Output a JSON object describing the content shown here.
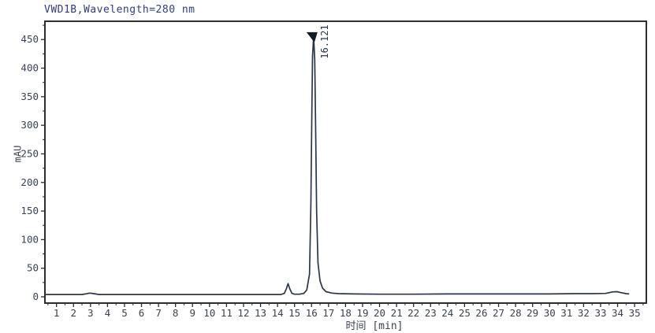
{
  "chart_data": {
    "type": "line",
    "title": "VWD1B,Wavelength=280 nm",
    "xlabel": "时间 [min]",
    "ylabel": "mAU",
    "xlim": [
      0.32,
      35.69
    ],
    "ylim": [
      -11,
      482
    ],
    "grid": false,
    "legend": "none",
    "x_major_ticks": [
      1,
      2,
      3,
      4,
      5,
      6,
      7,
      8,
      9,
      10,
      11,
      12,
      13,
      14,
      15,
      16,
      17,
      18,
      19,
      20,
      21,
      22,
      23,
      24,
      25,
      26,
      27,
      28,
      29,
      30,
      31,
      32,
      33,
      34,
      35
    ],
    "x_minor_tick_step": 0.5,
    "y_major_ticks": [
      0,
      50,
      100,
      150,
      200,
      250,
      300,
      350,
      400,
      450
    ],
    "y_minor_tick_step": 25,
    "colors": {
      "trace": "#2b3746",
      "frame": "#2d2d2d",
      "tick_labels": "#3b4252",
      "title_text": "#333c7c",
      "peak_marker": "#141b26",
      "background": "#ffffff"
    },
    "peaks": [
      {
        "retention_time_min": 16.121,
        "label": "16.121",
        "apex_mAU": 456,
        "marker": "filled-down-triangle"
      },
      {
        "retention_time_min": 14.62,
        "label": "",
        "apex_mAU": 23
      },
      {
        "retention_time_min": 33.95,
        "label": "",
        "apex_mAU": 9
      },
      {
        "retention_time_min": 2.95,
        "label": "",
        "apex_mAU": 6.5
      }
    ],
    "baseline_mAU": 4,
    "series": [
      {
        "name": "VWD1B signal",
        "points": [
          [
            0.32,
            4
          ],
          [
            1.5,
            4
          ],
          [
            2.5,
            4
          ],
          [
            2.7,
            5
          ],
          [
            2.95,
            6.5
          ],
          [
            3.2,
            5.5
          ],
          [
            3.5,
            4
          ],
          [
            5,
            4
          ],
          [
            8,
            4
          ],
          [
            11,
            4
          ],
          [
            13.5,
            4
          ],
          [
            14.2,
            4
          ],
          [
            14.4,
            6
          ],
          [
            14.52,
            14
          ],
          [
            14.62,
            23
          ],
          [
            14.72,
            14
          ],
          [
            14.85,
            6
          ],
          [
            15.0,
            4.5
          ],
          [
            15.3,
            4.5
          ],
          [
            15.55,
            6
          ],
          [
            15.72,
            12
          ],
          [
            15.88,
            40
          ],
          [
            15.96,
            160
          ],
          [
            16.02,
            330
          ],
          [
            16.06,
            420
          ],
          [
            16.121,
            456
          ],
          [
            16.19,
            415
          ],
          [
            16.24,
            300
          ],
          [
            16.3,
            150
          ],
          [
            16.38,
            60
          ],
          [
            16.5,
            28
          ],
          [
            16.65,
            15
          ],
          [
            16.85,
            9
          ],
          [
            17.2,
            6.5
          ],
          [
            17.6,
            5.5
          ],
          [
            18.5,
            5
          ],
          [
            20,
            4.5
          ],
          [
            22,
            4.5
          ],
          [
            24,
            5
          ],
          [
            26,
            5
          ],
          [
            28,
            5
          ],
          [
            30,
            5
          ],
          [
            31.5,
            5.5
          ],
          [
            32.5,
            5.5
          ],
          [
            33.3,
            6
          ],
          [
            33.7,
            8.5
          ],
          [
            33.95,
            9
          ],
          [
            34.25,
            7
          ],
          [
            34.5,
            5.5
          ],
          [
            34.68,
            5
          ]
        ]
      }
    ]
  }
}
